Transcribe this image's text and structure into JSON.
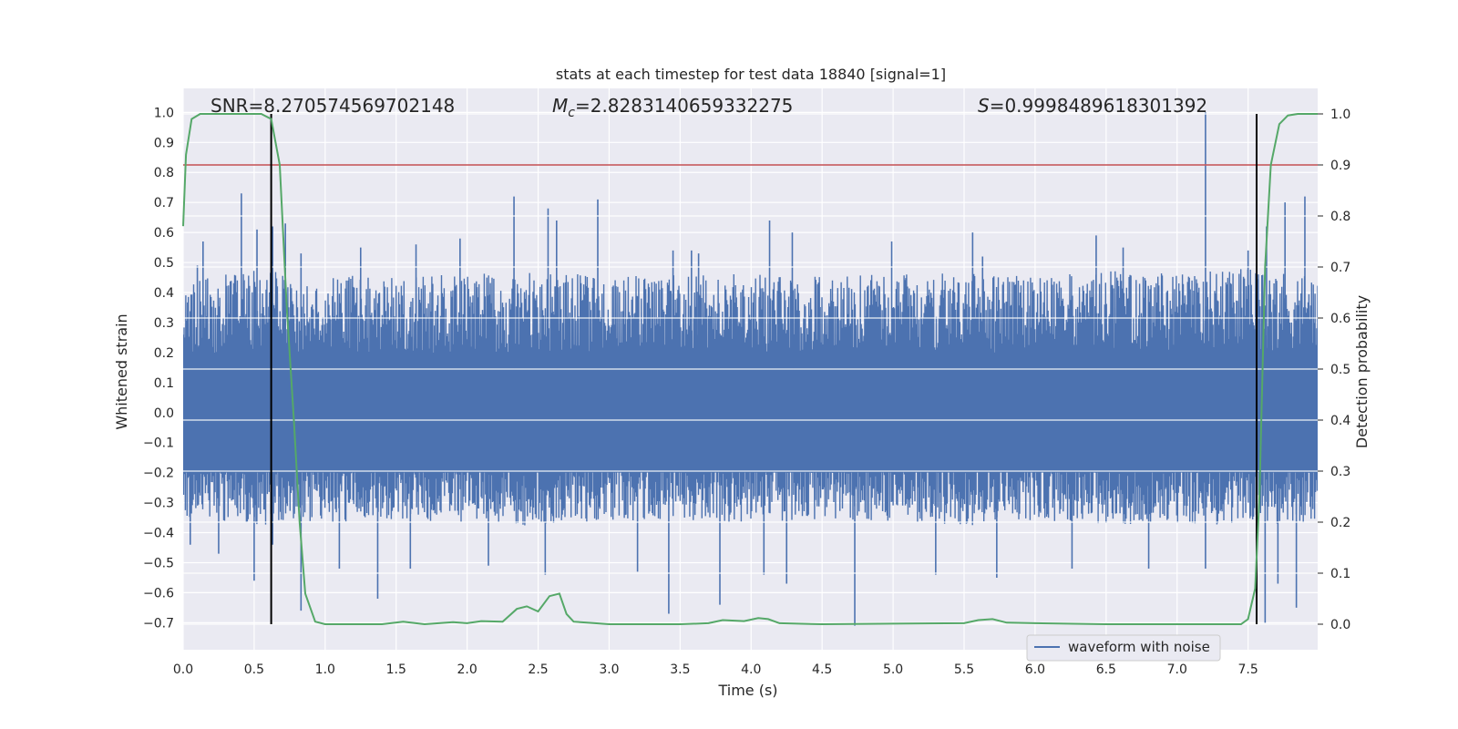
{
  "chart_data": {
    "type": "line",
    "title": "stats at each timestep for test data 18840 [signal=1]",
    "xlabel": "Time (s)",
    "ylabel_left": "Whitened strain",
    "ylabel_right": "Detection probability",
    "annotations": {
      "snr": "SNR=8.270574569702148",
      "mc_symbol": "M",
      "mc_sub": "c",
      "mc_value": "=2.8283140659332275",
      "s_symbol": "S",
      "s_value": "=0.9998489618301392"
    },
    "xlim": [
      0.0,
      7.99
    ],
    "ylim_left": [
      -0.79,
      1.08
    ],
    "ylim_right": [
      -0.05,
      1.05
    ],
    "x_ticks": [
      "0.0",
      "0.5",
      "1.0",
      "1.5",
      "2.0",
      "2.5",
      "3.0",
      "3.5",
      "4.0",
      "4.5",
      "5.0",
      "5.5",
      "6.0",
      "6.5",
      "7.0",
      "7.5"
    ],
    "y_left_ticks": [
      "1.0",
      "0.9",
      "0.8",
      "0.7",
      "0.6",
      "0.5",
      "0.4",
      "0.3",
      "0.2",
      "0.1",
      "0.0",
      "−0.1",
      "−0.2",
      "−0.3",
      "−0.4",
      "−0.5",
      "−0.6",
      "−0.7"
    ],
    "y_right_ticks": [
      "1.0",
      "0.9",
      "0.8",
      "0.7",
      "0.6",
      "0.5",
      "0.4",
      "0.3",
      "0.2",
      "0.1",
      "0.0"
    ],
    "threshold": 0.9,
    "boundaries": [
      0.62,
      7.56
    ],
    "legend": {
      "label": "waveform with noise",
      "placement": "lower-right"
    },
    "grid": true,
    "colors": {
      "waveform": "#4c72b0",
      "probability": "#55a868",
      "threshold": "#c44e52",
      "boundary": "#000000",
      "background": "#eaeaf2",
      "grid": "#ffffff"
    },
    "series": [
      {
        "name": "waveform with noise",
        "axis": "left",
        "envelope_upper": [
          [
            0.0,
            0.42
          ],
          [
            0.5,
            0.45
          ],
          [
            1.0,
            0.44
          ],
          [
            1.5,
            0.43
          ],
          [
            2.0,
            0.44
          ],
          [
            2.5,
            0.45
          ],
          [
            3.0,
            0.43
          ],
          [
            3.5,
            0.44
          ],
          [
            4.0,
            0.44
          ],
          [
            4.5,
            0.43
          ],
          [
            5.0,
            0.44
          ],
          [
            5.5,
            0.45
          ],
          [
            6.0,
            0.43
          ],
          [
            6.5,
            0.45
          ],
          [
            7.0,
            0.44
          ],
          [
            7.5,
            0.46
          ],
          [
            7.99,
            0.44
          ]
        ],
        "envelope_lower": [
          [
            0.0,
            -0.34
          ],
          [
            0.5,
            -0.36
          ],
          [
            1.0,
            -0.35
          ],
          [
            1.5,
            -0.34
          ],
          [
            2.0,
            -0.35
          ],
          [
            2.5,
            -0.36
          ],
          [
            3.0,
            -0.34
          ],
          [
            3.5,
            -0.35
          ],
          [
            4.0,
            -0.35
          ],
          [
            4.5,
            -0.34
          ],
          [
            5.0,
            -0.35
          ],
          [
            5.5,
            -0.36
          ],
          [
            6.0,
            -0.34
          ],
          [
            6.5,
            -0.36
          ],
          [
            7.0,
            -0.35
          ],
          [
            7.5,
            -0.36
          ],
          [
            7.99,
            -0.35
          ]
        ],
        "peaks": [
          [
            0.1,
            0.49
          ],
          [
            0.14,
            0.57
          ],
          [
            0.41,
            0.73
          ],
          [
            0.52,
            0.61
          ],
          [
            0.63,
            0.62
          ],
          [
            0.72,
            0.63
          ],
          [
            0.83,
            0.53
          ],
          [
            1.25,
            0.55
          ],
          [
            1.64,
            0.56
          ],
          [
            1.95,
            0.58
          ],
          [
            2.33,
            0.72
          ],
          [
            2.57,
            0.68
          ],
          [
            2.63,
            0.64
          ],
          [
            2.92,
            0.71
          ],
          [
            3.45,
            0.54
          ],
          [
            3.58,
            0.54
          ],
          [
            3.63,
            0.53
          ],
          [
            4.13,
            0.64
          ],
          [
            4.29,
            0.6
          ],
          [
            4.99,
            0.57
          ],
          [
            5.56,
            0.6
          ],
          [
            5.63,
            0.52
          ],
          [
            6.43,
            0.59
          ],
          [
            6.62,
            0.55
          ],
          [
            7.2,
            1.0
          ],
          [
            7.5,
            0.54
          ],
          [
            7.63,
            0.62
          ],
          [
            7.76,
            0.7
          ],
          [
            7.9,
            0.72
          ]
        ],
        "troughs": [
          [
            0.05,
            -0.44
          ],
          [
            0.25,
            -0.47
          ],
          [
            0.5,
            -0.56
          ],
          [
            0.63,
            -0.44
          ],
          [
            0.83,
            -0.66
          ],
          [
            1.1,
            -0.52
          ],
          [
            1.37,
            -0.62
          ],
          [
            1.6,
            -0.52
          ],
          [
            2.15,
            -0.51
          ],
          [
            2.55,
            -0.54
          ],
          [
            3.2,
            -0.53
          ],
          [
            3.42,
            -0.67
          ],
          [
            3.78,
            -0.64
          ],
          [
            4.09,
            -0.54
          ],
          [
            4.25,
            -0.57
          ],
          [
            4.73,
            -0.71
          ],
          [
            5.3,
            -0.54
          ],
          [
            5.73,
            -0.55
          ],
          [
            6.26,
            -0.52
          ],
          [
            6.8,
            -0.52
          ],
          [
            7.2,
            -0.52
          ],
          [
            7.62,
            -0.7
          ],
          [
            7.71,
            -0.57
          ],
          [
            7.84,
            -0.65
          ]
        ]
      },
      {
        "name": "Detection probability",
        "axis": "right",
        "points": [
          [
            0.0,
            0.78
          ],
          [
            0.02,
            0.92
          ],
          [
            0.06,
            0.99
          ],
          [
            0.12,
            1.0
          ],
          [
            0.55,
            1.0
          ],
          [
            0.62,
            0.99
          ],
          [
            0.68,
            0.9
          ],
          [
            0.73,
            0.62
          ],
          [
            0.78,
            0.4
          ],
          [
            0.82,
            0.2
          ],
          [
            0.86,
            0.06
          ],
          [
            0.93,
            0.005
          ],
          [
            1.0,
            0.0
          ],
          [
            1.2,
            0.0
          ],
          [
            1.4,
            0.0
          ],
          [
            1.55,
            0.005
          ],
          [
            1.7,
            0.0
          ],
          [
            1.9,
            0.004
          ],
          [
            2.0,
            0.002
          ],
          [
            2.1,
            0.006
          ],
          [
            2.25,
            0.005
          ],
          [
            2.35,
            0.03
          ],
          [
            2.42,
            0.035
          ],
          [
            2.5,
            0.025
          ],
          [
            2.58,
            0.055
          ],
          [
            2.65,
            0.06
          ],
          [
            2.7,
            0.02
          ],
          [
            2.75,
            0.005
          ],
          [
            2.9,
            0.002
          ],
          [
            3.0,
            0.0
          ],
          [
            3.5,
            0.0
          ],
          [
            3.7,
            0.002
          ],
          [
            3.8,
            0.008
          ],
          [
            3.95,
            0.006
          ],
          [
            4.05,
            0.012
          ],
          [
            4.12,
            0.01
          ],
          [
            4.2,
            0.002
          ],
          [
            4.5,
            0.0
          ],
          [
            5.0,
            0.001
          ],
          [
            5.5,
            0.002
          ],
          [
            5.6,
            0.008
          ],
          [
            5.7,
            0.01
          ],
          [
            5.8,
            0.003
          ],
          [
            6.0,
            0.002
          ],
          [
            6.5,
            0.0
          ],
          [
            7.0,
            0.0
          ],
          [
            7.45,
            0.0
          ],
          [
            7.5,
            0.01
          ],
          [
            7.55,
            0.07
          ],
          [
            7.58,
            0.25
          ],
          [
            7.62,
            0.7
          ],
          [
            7.66,
            0.9
          ],
          [
            7.72,
            0.98
          ],
          [
            7.78,
            0.997
          ],
          [
            7.85,
            1.0
          ],
          [
            7.99,
            1.0
          ]
        ]
      }
    ]
  }
}
